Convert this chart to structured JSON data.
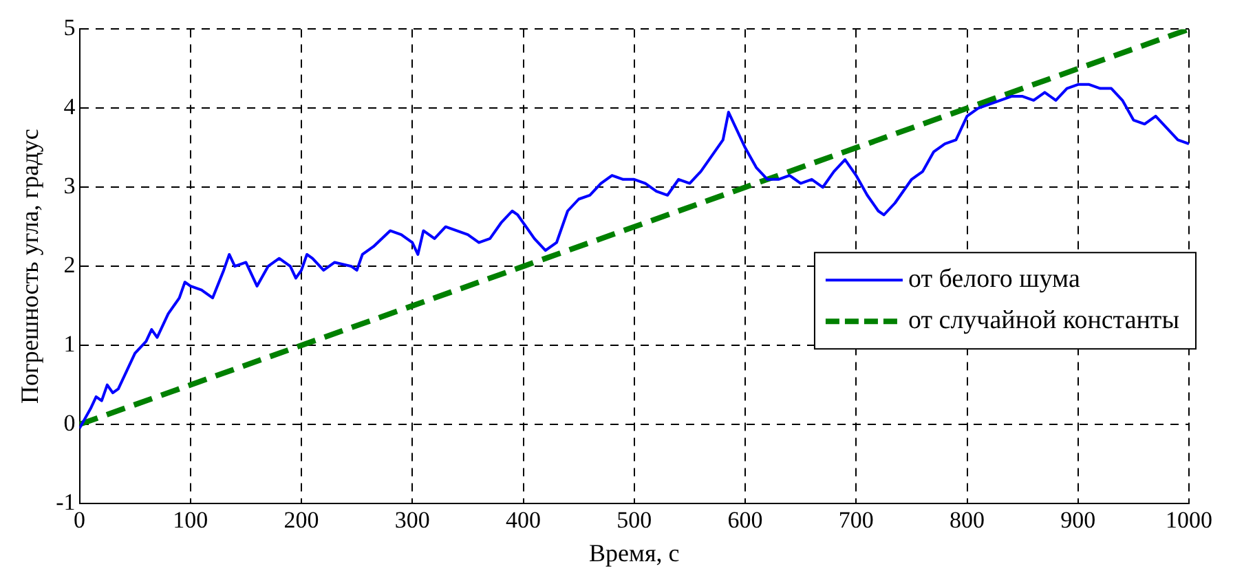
{
  "chart_data": {
    "type": "line",
    "xlabel": "Время, с",
    "ylabel": "Погрешность угла, градус",
    "xlim": [
      0,
      1000
    ],
    "xticks": [
      0,
      100,
      200,
      300,
      400,
      500,
      600,
      700,
      800,
      900,
      1000
    ],
    "ylim": [
      -1,
      5
    ],
    "yticks": [
      -1,
      0,
      1,
      2,
      3,
      4,
      5
    ],
    "grid": true,
    "legend": "right",
    "marker": "none",
    "series": [
      {
        "name": "от белого шума",
        "color": "#0000ff",
        "line_style": "solid",
        "x": [
          0,
          10,
          15,
          20,
          25,
          30,
          35,
          40,
          50,
          60,
          65,
          70,
          80,
          90,
          95,
          100,
          110,
          120,
          130,
          135,
          140,
          150,
          160,
          170,
          180,
          190,
          195,
          200,
          205,
          210,
          220,
          230,
          245,
          250,
          255,
          265,
          280,
          290,
          300,
          305,
          310,
          320,
          330,
          340,
          350,
          360,
          370,
          380,
          390,
          395,
          410,
          420,
          430,
          440,
          450,
          460,
          470,
          480,
          490,
          500,
          510,
          520,
          530,
          540,
          550,
          560,
          570,
          580,
          585,
          590,
          600,
          610,
          620,
          630,
          640,
          650,
          660,
          670,
          680,
          690,
          700,
          710,
          720,
          725,
          735,
          750,
          760,
          770,
          780,
          790,
          800,
          810,
          820,
          830,
          840,
          850,
          860,
          870,
          880,
          890,
          900,
          910,
          920,
          930,
          940,
          950,
          960,
          970,
          980,
          990,
          1000
        ],
        "values": [
          -0.05,
          0.2,
          0.35,
          0.3,
          0.5,
          0.4,
          0.45,
          0.6,
          0.9,
          1.05,
          1.2,
          1.1,
          1.4,
          1.6,
          1.8,
          1.75,
          1.7,
          1.6,
          1.95,
          2.15,
          2.0,
          2.05,
          1.75,
          2.0,
          2.1,
          2.0,
          1.85,
          1.95,
          2.15,
          2.1,
          1.95,
          2.05,
          2.0,
          1.95,
          2.15,
          2.25,
          2.45,
          2.4,
          2.3,
          2.15,
          2.45,
          2.35,
          2.5,
          2.45,
          2.4,
          2.3,
          2.35,
          2.55,
          2.7,
          2.65,
          2.35,
          2.2,
          2.3,
          2.7,
          2.85,
          2.9,
          3.05,
          3.15,
          3.1,
          3.1,
          3.05,
          2.95,
          2.9,
          3.1,
          3.05,
          3.2,
          3.4,
          3.6,
          3.95,
          3.8,
          3.5,
          3.25,
          3.1,
          3.1,
          3.15,
          3.05,
          3.1,
          3.0,
          3.2,
          3.35,
          3.15,
          2.9,
          2.7,
          2.65,
          2.8,
          3.1,
          3.2,
          3.45,
          3.55,
          3.6,
          3.9,
          4.0,
          4.05,
          4.1,
          4.15,
          4.15,
          4.1,
          4.2,
          4.1,
          4.25,
          4.3,
          4.3,
          4.25,
          4.25,
          4.1,
          3.85,
          3.8,
          3.9,
          3.75,
          3.6,
          3.55
        ]
      },
      {
        "name": "от случайной константы",
        "color": "#008000",
        "line_style": "dashed",
        "x": [
          0,
          1000
        ],
        "values": [
          0,
          5
        ]
      }
    ]
  }
}
